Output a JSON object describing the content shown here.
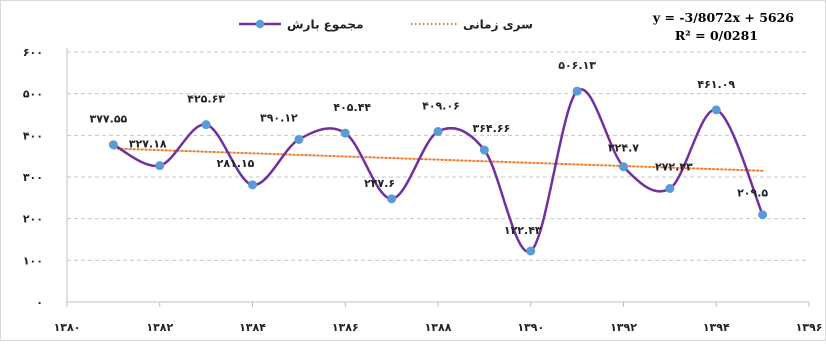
{
  "chart_data": {
    "type": "line",
    "x": [
      1381,
      1382,
      1383,
      1384,
      1385,
      1386,
      1387,
      1388,
      1389,
      1390,
      1391,
      1392,
      1393,
      1394,
      1395
    ],
    "series": [
      {
        "name": "مجموع بارش",
        "color": "#7030a0",
        "marker_color": "#5b9bd5",
        "values": [
          377.55,
          327.18,
          425.63,
          281.15,
          390.12,
          405.44,
          247.6,
          409.06,
          364.66,
          122.43,
          506.13,
          324.7,
          272.43,
          461.09,
          209.5
        ],
        "labels": [
          "۳۷۷.۵۵",
          "۳۲۷.۱۸",
          "۴۲۵.۶۳",
          "۲۸۱.۱۵",
          "۳۹۰.۱۲",
          "۴۰۵.۴۴",
          "۲۴۷.۶",
          "۴۰۹.۰۶",
          "۳۶۴.۶۶",
          "۱۲۲.۴۳",
          "۵۰۶.۱۳",
          "۳۲۴.۷",
          "۲۷۲.۴۳",
          "۴۶۱.۰۹",
          "۲۰۹.۵"
        ]
      }
    ],
    "trendline": {
      "name": "سری زمانی",
      "color": "#ed7d31",
      "style": "dotted",
      "slope": -3.8072,
      "intercept": 5626,
      "equation": "y = -3/8072x + 5626",
      "r_squared": "R² = 0/0281"
    },
    "xlim": [
      1380,
      1396
    ],
    "ylim": [
      0,
      600
    ],
    "x_ticks": [
      1380,
      1382,
      1384,
      1386,
      1388,
      1390,
      1392,
      1394,
      1396
    ],
    "x_tick_labels": [
      "۱۳۸۰",
      "۱۳۸۲",
      "۱۳۸۴",
      "۱۳۸۶",
      "۱۳۸۸",
      "۱۳۹۰",
      "۱۳۹۲",
      "۱۳۹۴",
      "۱۳۹۶"
    ],
    "y_ticks": [
      0,
      100,
      200,
      300,
      400,
      500,
      600
    ],
    "y_tick_labels": [
      "۰",
      "۱۰۰",
      "۲۰۰",
      "۳۰۰",
      "۴۰۰",
      "۵۰۰",
      "۶۰۰"
    ],
    "grid": "horizontal-dashed",
    "legend": "top-center"
  }
}
